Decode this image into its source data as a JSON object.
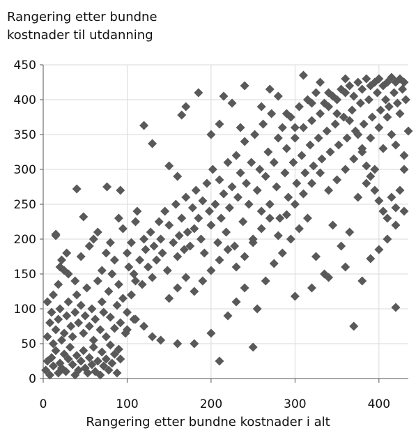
{
  "chart_data": {
    "type": "scatter",
    "ylabel": [
      "Rangering etter bundne",
      "kostnader til utdanning"
    ],
    "xlabel": "Rangering etter bundne kostnader i alt",
    "xlim": [
      0,
      435
    ],
    "ylim": [
      0,
      450
    ],
    "xticks": [
      "0",
      "100",
      "200",
      "300",
      "400"
    ],
    "yticks": [
      "0",
      "50",
      "100",
      "150",
      "200",
      "250",
      "300",
      "350",
      "400",
      "450"
    ],
    "grid": "horizontal and vertical",
    "legend": "none",
    "marker": "diamond",
    "marker_color": "#595959",
    "gridline_color": "#d9d9d9",
    "points": [
      [
        3,
        12
      ],
      [
        5,
        25
      ],
      [
        8,
        5
      ],
      [
        10,
        30
      ],
      [
        12,
        18
      ],
      [
        15,
        40
      ],
      [
        18,
        8
      ],
      [
        20,
        22
      ],
      [
        22,
        15
      ],
      [
        25,
        35
      ],
      [
        27,
        10
      ],
      [
        30,
        28
      ],
      [
        32,
        45
      ],
      [
        35,
        20
      ],
      [
        38,
        5
      ],
      [
        40,
        33
      ],
      [
        42,
        12
      ],
      [
        45,
        25
      ],
      [
        48,
        40
      ],
      [
        50,
        15
      ],
      [
        53,
        8
      ],
      [
        55,
        30
      ],
      [
        58,
        20
      ],
      [
        60,
        45
      ],
      [
        62,
        10
      ],
      [
        65,
        25
      ],
      [
        68,
        5
      ],
      [
        70,
        38
      ],
      [
        72,
        18
      ],
      [
        75,
        28
      ],
      [
        78,
        12
      ],
      [
        80,
        48
      ],
      [
        82,
        22
      ],
      [
        85,
        35
      ],
      [
        88,
        8
      ],
      [
        90,
        42
      ],
      [
        92,
        28
      ],
      [
        5,
        60
      ],
      [
        8,
        80
      ],
      [
        10,
        95
      ],
      [
        12,
        50
      ],
      [
        15,
        70
      ],
      [
        18,
        85
      ],
      [
        20,
        100
      ],
      [
        22,
        55
      ],
      [
        25,
        65
      ],
      [
        28,
        90
      ],
      [
        30,
        110
      ],
      [
        33,
        75
      ],
      [
        35,
        60
      ],
      [
        38,
        95
      ],
      [
        40,
        120
      ],
      [
        42,
        80
      ],
      [
        45,
        105
      ],
      [
        48,
        65
      ],
      [
        50,
        90
      ],
      [
        52,
        130
      ],
      [
        55,
        75
      ],
      [
        58,
        100
      ],
      [
        60,
        55
      ],
      [
        62,
        85
      ],
      [
        65,
        140
      ],
      [
        68,
        70
      ],
      [
        70,
        110
      ],
      [
        72,
        95
      ],
      [
        75,
        60
      ],
      [
        78,
        125
      ],
      [
        80,
        88
      ],
      [
        82,
        150
      ],
      [
        85,
        72
      ],
      [
        88,
        105
      ],
      [
        90,
        135
      ],
      [
        92,
        80
      ],
      [
        95,
        115
      ],
      [
        98,
        65
      ],
      [
        100,
        95
      ],
      [
        102,
        160
      ],
      [
        105,
        120
      ],
      [
        108,
        85
      ],
      [
        110,
        140
      ],
      [
        5,
        110
      ],
      [
        12,
        120
      ],
      [
        18,
        135
      ],
      [
        22,
        170
      ],
      [
        25,
        155
      ],
      [
        28,
        180
      ],
      [
        15,
        205
      ],
      [
        20,
        160
      ],
      [
        30,
        150
      ],
      [
        38,
        140
      ],
      [
        45,
        175
      ],
      [
        55,
        190
      ],
      [
        60,
        200
      ],
      [
        65,
        210
      ],
      [
        70,
        155
      ],
      [
        75,
        180
      ],
      [
        80,
        195
      ],
      [
        85,
        170
      ],
      [
        90,
        230
      ],
      [
        95,
        215
      ],
      [
        100,
        180
      ],
      [
        105,
        195
      ],
      [
        108,
        150
      ],
      [
        110,
        225
      ],
      [
        112,
        240
      ],
      [
        115,
        170
      ],
      [
        118,
        135
      ],
      [
        120,
        200
      ],
      [
        122,
        185
      ],
      [
        125,
        160
      ],
      [
        128,
        210
      ],
      [
        130,
        145
      ],
      [
        132,
        190
      ],
      [
        135,
        170
      ],
      [
        138,
        225
      ],
      [
        140,
        200
      ],
      [
        142,
        180
      ],
      [
        145,
        240
      ],
      [
        148,
        155
      ],
      [
        150,
        220
      ],
      [
        155,
        195
      ],
      [
        158,
        250
      ],
      [
        160,
        175
      ],
      [
        162,
        205
      ],
      [
        165,
        230
      ],
      [
        168,
        185
      ],
      [
        170,
        260
      ],
      [
        172,
        210
      ],
      [
        175,
        190
      ],
      [
        178,
        245
      ],
      [
        180,
        215
      ],
      [
        182,
        270
      ],
      [
        185,
        230
      ],
      [
        188,
        200
      ],
      [
        190,
        255
      ],
      [
        192,
        180
      ],
      [
        195,
        280
      ],
      [
        198,
        240
      ],
      [
        200,
        220
      ],
      [
        202,
        300
      ],
      [
        205,
        250
      ],
      [
        208,
        195
      ],
      [
        210,
        285
      ],
      [
        212,
        230
      ],
      [
        215,
        265
      ],
      [
        218,
        210
      ],
      [
        220,
        310
      ],
      [
        222,
        245
      ],
      [
        225,
        275
      ],
      [
        228,
        190
      ],
      [
        230,
        320
      ],
      [
        232,
        260
      ],
      [
        235,
        295
      ],
      [
        238,
        225
      ],
      [
        240,
        340
      ],
      [
        242,
        280
      ],
      [
        245,
        250
      ],
      [
        248,
        310
      ],
      [
        250,
        200
      ],
      [
        252,
        350
      ],
      [
        255,
        270
      ],
      [
        258,
        300
      ],
      [
        260,
        240
      ],
      [
        262,
        365
      ],
      [
        265,
        290
      ],
      [
        268,
        325
      ],
      [
        270,
        250
      ],
      [
        272,
        380
      ],
      [
        275,
        310
      ],
      [
        278,
        275
      ],
      [
        280,
        345
      ],
      [
        282,
        230
      ],
      [
        285,
        360
      ],
      [
        288,
        295
      ],
      [
        290,
        330
      ],
      [
        292,
        260
      ],
      [
        295,
        375
      ],
      [
        298,
        310
      ],
      [
        300,
        345
      ],
      [
        302,
        280
      ],
      [
        305,
        390
      ],
      [
        308,
        320
      ],
      [
        310,
        360
      ],
      [
        312,
        295
      ],
      [
        315,
        400
      ],
      [
        318,
        335
      ],
      [
        320,
        370
      ],
      [
        322,
        305
      ],
      [
        325,
        410
      ],
      [
        328,
        345
      ],
      [
        330,
        380
      ],
      [
        332,
        315
      ],
      [
        335,
        395
      ],
      [
        338,
        355
      ],
      [
        340,
        390
      ],
      [
        342,
        325
      ],
      [
        345,
        405
      ],
      [
        348,
        365
      ],
      [
        350,
        400
      ],
      [
        352,
        335
      ],
      [
        355,
        415
      ],
      [
        358,
        375
      ],
      [
        360,
        410
      ],
      [
        362,
        345
      ],
      [
        365,
        420
      ],
      [
        368,
        385
      ],
      [
        370,
        405
      ],
      [
        372,
        355
      ],
      [
        375,
        425
      ],
      [
        378,
        395
      ],
      [
        380,
        415
      ],
      [
        382,
        365
      ],
      [
        385,
        430
      ],
      [
        388,
        400
      ],
      [
        390,
        420
      ],
      [
        392,
        375
      ],
      [
        395,
        425
      ],
      [
        398,
        410
      ],
      [
        400,
        430
      ],
      [
        402,
        385
      ],
      [
        405,
        420
      ],
      [
        408,
        400
      ],
      [
        410,
        425
      ],
      [
        412,
        390
      ],
      [
        415,
        432
      ],
      [
        418,
        410
      ],
      [
        420,
        425
      ],
      [
        422,
        395
      ],
      [
        425,
        430
      ],
      [
        428,
        415
      ],
      [
        430,
        425
      ],
      [
        432,
        400
      ],
      [
        76,
        275
      ],
      [
        40,
        272
      ],
      [
        92,
        270
      ],
      [
        48,
        232
      ],
      [
        15,
        207
      ],
      [
        120,
        363
      ],
      [
        130,
        337
      ],
      [
        150,
        305
      ],
      [
        160,
        290
      ],
      [
        165,
        378
      ],
      [
        170,
        390
      ],
      [
        185,
        410
      ],
      [
        200,
        350
      ],
      [
        210,
        365
      ],
      [
        215,
        405
      ],
      [
        225,
        395
      ],
      [
        235,
        360
      ],
      [
        240,
        420
      ],
      [
        260,
        390
      ],
      [
        270,
        415
      ],
      [
        280,
        405
      ],
      [
        290,
        380
      ],
      [
        300,
        360
      ],
      [
        310,
        435
      ],
      [
        320,
        395
      ],
      [
        330,
        425
      ],
      [
        340,
        410
      ],
      [
        350,
        380
      ],
      [
        360,
        430
      ],
      [
        365,
        370
      ],
      [
        375,
        350
      ],
      [
        380,
        325
      ],
      [
        385,
        305
      ],
      [
        390,
        290
      ],
      [
        395,
        270
      ],
      [
        400,
        255
      ],
      [
        405,
        240
      ],
      [
        410,
        230
      ],
      [
        415,
        260
      ],
      [
        420,
        245
      ],
      [
        425,
        270
      ],
      [
        430,
        320
      ],
      [
        435,
        355
      ],
      [
        420,
        102
      ],
      [
        370,
        75
      ],
      [
        250,
        45
      ],
      [
        210,
        25
      ],
      [
        160,
        50
      ],
      [
        140,
        55
      ],
      [
        130,
        60
      ],
      [
        120,
        75
      ],
      [
        110,
        85
      ],
      [
        100,
        70
      ],
      [
        180,
        50
      ],
      [
        200,
        65
      ],
      [
        220,
        90
      ],
      [
        230,
        110
      ],
      [
        240,
        130
      ],
      [
        255,
        100
      ],
      [
        265,
        140
      ],
      [
        275,
        165
      ],
      [
        285,
        180
      ],
      [
        295,
        200
      ],
      [
        305,
        215
      ],
      [
        315,
        230
      ],
      [
        325,
        175
      ],
      [
        335,
        150
      ],
      [
        345,
        220
      ],
      [
        355,
        190
      ],
      [
        365,
        210
      ],
      [
        375,
        260
      ],
      [
        385,
        280
      ],
      [
        395,
        300
      ],
      [
        405,
        330
      ],
      [
        415,
        350
      ],
      [
        425,
        380
      ],
      [
        300,
        118
      ],
      [
        320,
        130
      ],
      [
        340,
        145
      ],
      [
        360,
        160
      ],
      [
        380,
        140
      ],
      [
        390,
        172
      ],
      [
        400,
        185
      ],
      [
        410,
        200
      ],
      [
        420,
        220
      ],
      [
        430,
        240
      ],
      [
        150,
        115
      ],
      [
        160,
        130
      ],
      [
        170,
        145
      ],
      [
        180,
        125
      ],
      [
        190,
        140
      ],
      [
        200,
        155
      ],
      [
        210,
        170
      ],
      [
        220,
        185
      ],
      [
        230,
        160
      ],
      [
        240,
        175
      ],
      [
        250,
        195
      ],
      [
        260,
        215
      ],
      [
        270,
        230
      ],
      [
        280,
        205
      ],
      [
        290,
        235
      ],
      [
        300,
        250
      ],
      [
        310,
        265
      ],
      [
        320,
        280
      ],
      [
        330,
        295
      ],
      [
        340,
        270
      ],
      [
        350,
        285
      ],
      [
        360,
        300
      ],
      [
        370,
        315
      ],
      [
        380,
        330
      ],
      [
        390,
        345
      ],
      [
        400,
        360
      ],
      [
        410,
        375
      ],
      [
        420,
        335
      ],
      [
        430,
        300
      ]
    ]
  }
}
